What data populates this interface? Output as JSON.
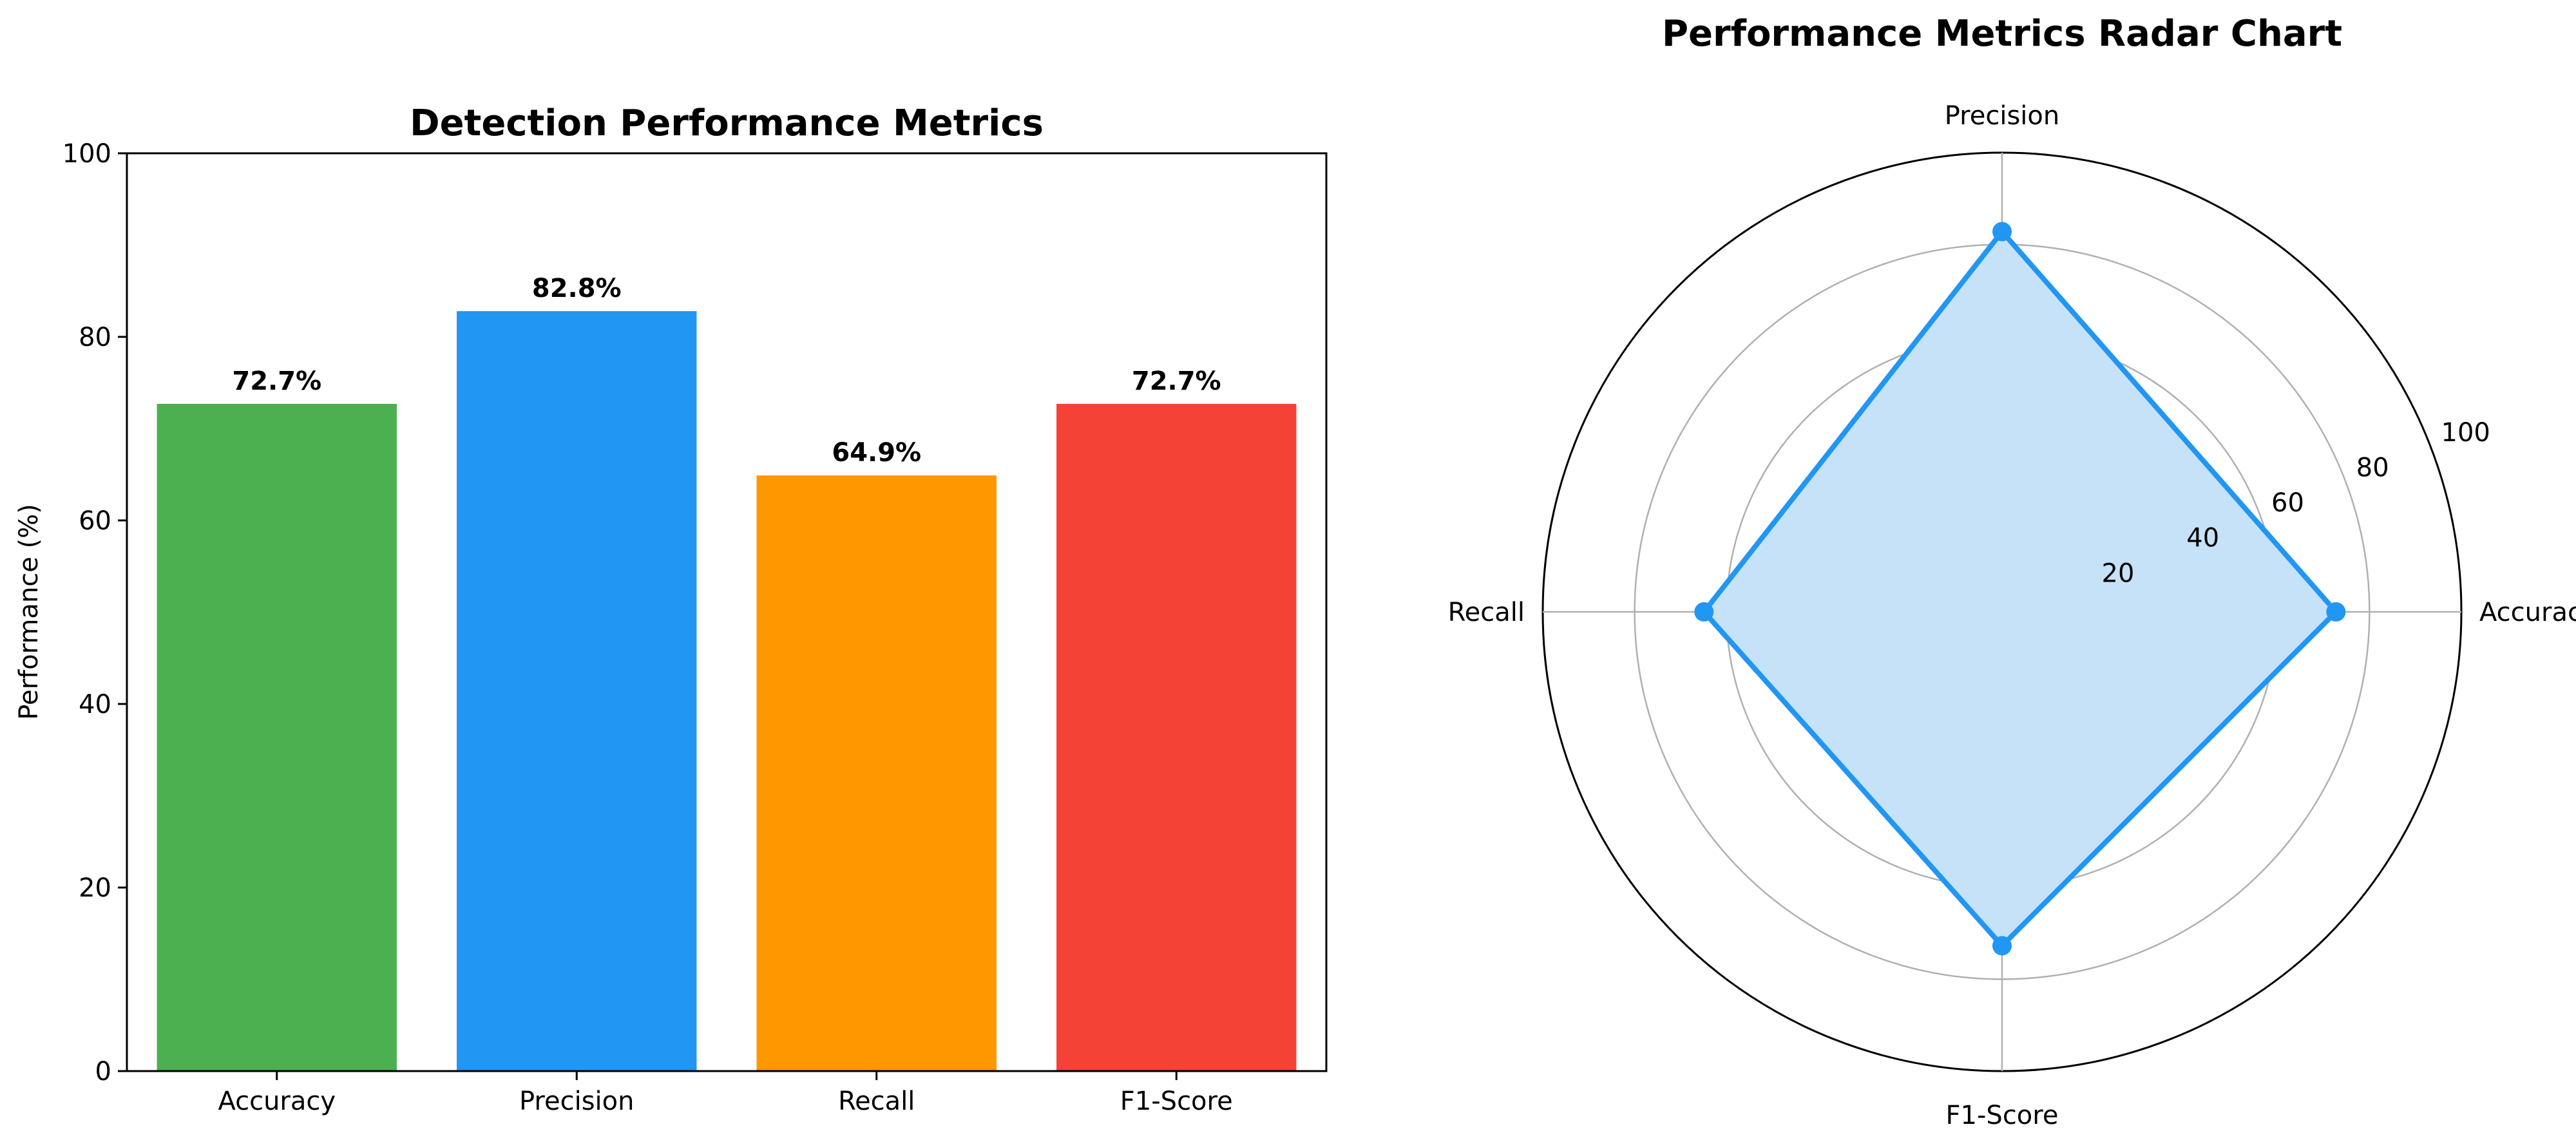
{
  "chart_data": [
    {
      "type": "bar",
      "title": "Detection Performance Metrics",
      "xlabel": "",
      "ylabel": "Performance (%)",
      "categories": [
        "Accuracy",
        "Precision",
        "Recall",
        "F1-Score"
      ],
      "values": [
        72.7,
        82.8,
        64.9,
        72.7
      ],
      "value_labels": [
        "72.7%",
        "82.8%",
        "64.9%",
        "72.7%"
      ],
      "colors": [
        "#4caf50",
        "#2196f3",
        "#ff9800",
        "#f44336"
      ],
      "ylim": [
        0,
        100
      ],
      "yticks": [
        0,
        20,
        40,
        60,
        80,
        100
      ],
      "grid": false,
      "legend": "none"
    },
    {
      "type": "radar",
      "title": "Performance Metrics Radar Chart",
      "categories": [
        "Accuracy",
        "Precision",
        "Recall",
        "F1-Score"
      ],
      "values": [
        72.7,
        82.8,
        64.9,
        72.7
      ],
      "rlim": [
        0,
        100
      ],
      "rticks": [
        20,
        40,
        60,
        80,
        100
      ],
      "line_color": "#2196f3",
      "fill_color": "#c6e2f8",
      "grid": true,
      "legend": "none"
    }
  ]
}
